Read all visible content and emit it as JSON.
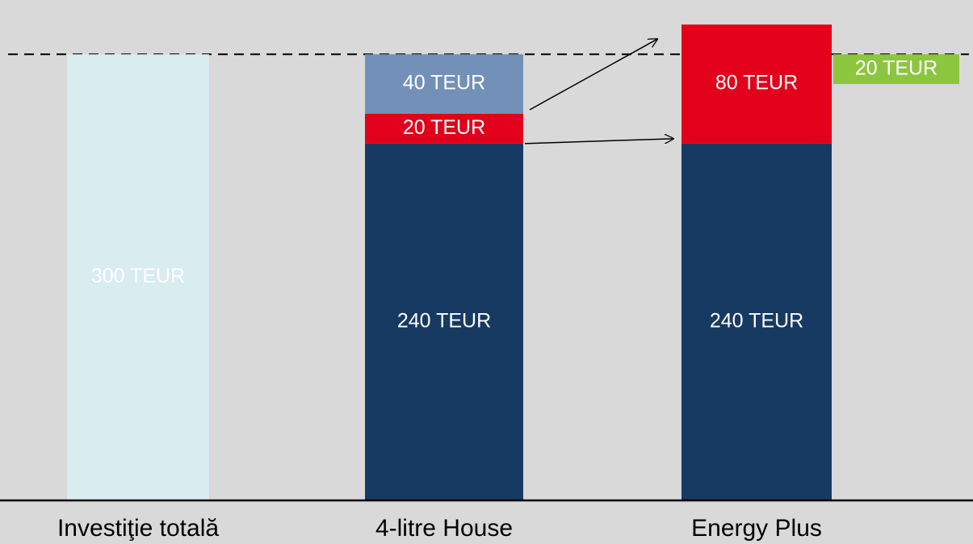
{
  "chart_data": {
    "type": "stacked_bar",
    "categories": [
      "Investiţie totală",
      "4-litre House",
      "Energy Plus"
    ],
    "series": [
      {
        "color": "#d9ecf0",
        "values": [
          300,
          null,
          null
        ],
        "value_labels": [
          "300 TEUR",
          null,
          null
        ]
      },
      {
        "color": "#173a62",
        "values": [
          null,
          240,
          240
        ],
        "value_labels": [
          null,
          "240 TEUR",
          "240 TEUR"
        ]
      },
      {
        "color": "#e2001a",
        "values": [
          null,
          20,
          80
        ],
        "value_labels": [
          null,
          "20 TEUR",
          "80 TEUR"
        ]
      },
      {
        "color": "#7390b8",
        "values": [
          null,
          40,
          null
        ],
        "value_labels": [
          null,
          "40 TEUR",
          null
        ]
      }
    ],
    "reference_line": 300,
    "annotation": {
      "value": 20,
      "label": "20 TEUR",
      "color": "#8cc63f"
    },
    "ylim": [
      0,
      330
    ]
  }
}
